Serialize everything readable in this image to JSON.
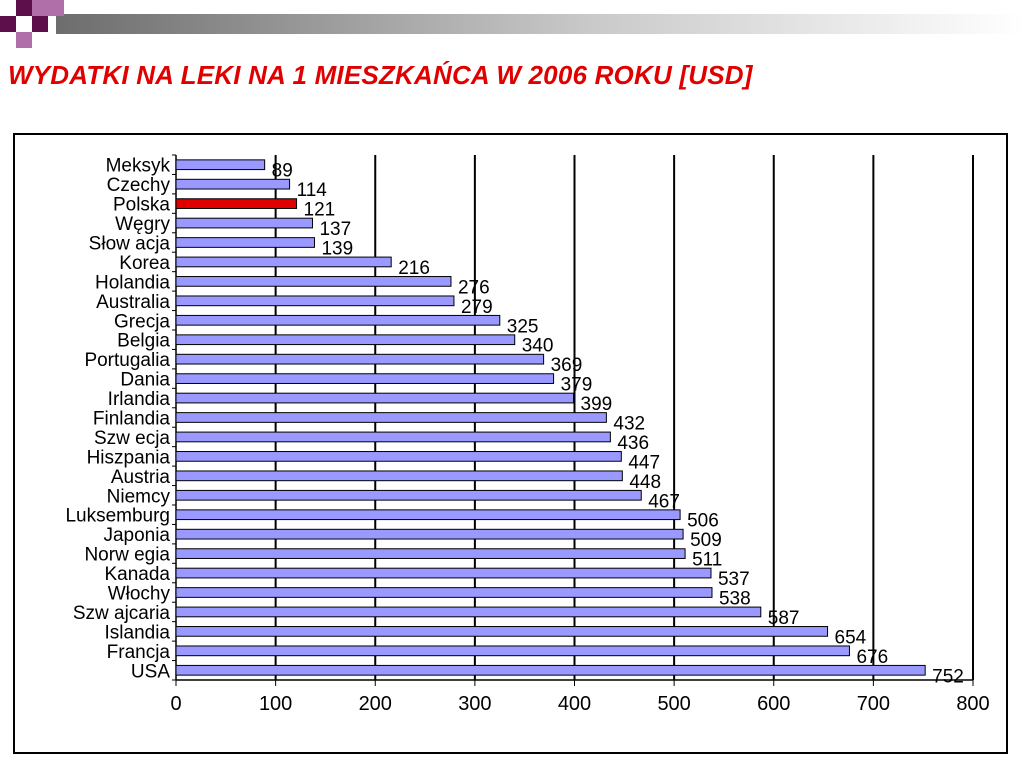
{
  "slide": {
    "title": "WYDATKI NA LEKI NA 1 MIESZKAŃCA W 2006 ROKU [USD]",
    "accent_color": "#e00000",
    "decoration_colors": [
      "#5c0f4a",
      "#b06fa8"
    ]
  },
  "chart_data": {
    "type": "bar",
    "orientation": "horizontal",
    "title": "",
    "xlabel": "",
    "ylabel": "",
    "xlim": [
      0,
      800
    ],
    "x_ticks": [
      0,
      100,
      200,
      300,
      400,
      500,
      600,
      700,
      800
    ],
    "grid": "vertical",
    "legend": "none",
    "bar_color": "#9999ff",
    "highlight_color": "#e00000",
    "highlight_category": "Polska",
    "categories": [
      "Meksyk",
      "Czechy",
      "Polska",
      "Węgry",
      "Słow acja",
      "Korea",
      "Holandia",
      "Australia",
      "Grecja",
      "Belgia",
      "Portugalia",
      "Dania",
      "Irlandia",
      "Finlandia",
      "Szw ecja",
      "Hiszpania",
      "Austria",
      "Niemcy",
      "Luksemburg",
      "Japonia",
      "Norw egia",
      "Kanada",
      "Włochy",
      "Szw ajcaria",
      "Islandia",
      "Francja",
      "USA"
    ],
    "values": [
      89,
      114,
      121,
      137,
      139,
      216,
      276,
      279,
      325,
      340,
      369,
      379,
      399,
      432,
      436,
      447,
      448,
      467,
      506,
      509,
      511,
      537,
      538,
      587,
      654,
      676,
      752
    ]
  }
}
